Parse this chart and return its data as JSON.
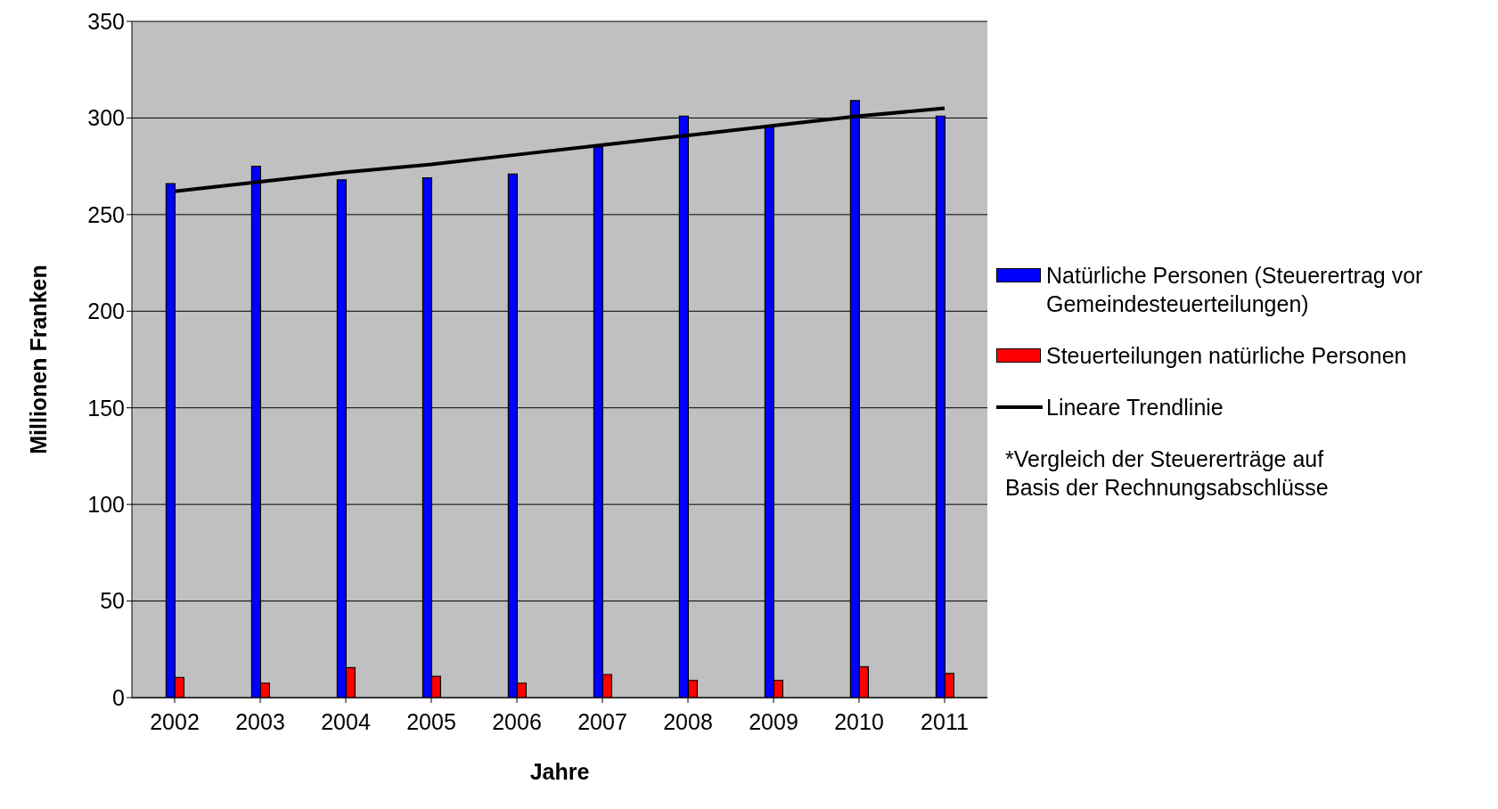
{
  "chart_data": {
    "type": "bar",
    "xlabel": "Jahre",
    "ylabel": "Millionen Franken",
    "categories": [
      "2002",
      "2003",
      "2004",
      "2005",
      "2006",
      "2007",
      "2008",
      "2009",
      "2010",
      "2011"
    ],
    "series": [
      {
        "name": "Natürliche Personen (Steuerertrag vor Gemeindesteuerteilungen)",
        "color": "#0000ff",
        "values": [
          266,
          275,
          268,
          269,
          271,
          285,
          301,
          296,
          309,
          301
        ]
      },
      {
        "name": "Steuerteilungen natürliche Personen",
        "color": "#ff0000",
        "values": [
          10.5,
          7.5,
          15.5,
          11,
          7.5,
          12,
          9,
          9,
          16,
          12.5
        ]
      },
      {
        "name": "Lineare Trendlinie",
        "type": "line",
        "color": "#000000",
        "values": [
          262,
          267,
          272,
          276,
          281,
          286,
          291,
          296,
          301,
          305
        ]
      }
    ],
    "ylim": [
      0,
      350
    ],
    "yticks": [
      0,
      50,
      100,
      150,
      200,
      250,
      300,
      350
    ],
    "grid": "y",
    "legend": "right",
    "marker": "none",
    "annotations": [
      "*Vergleich der Steuererträge auf Basis der Rechnungsabschlüsse"
    ]
  }
}
